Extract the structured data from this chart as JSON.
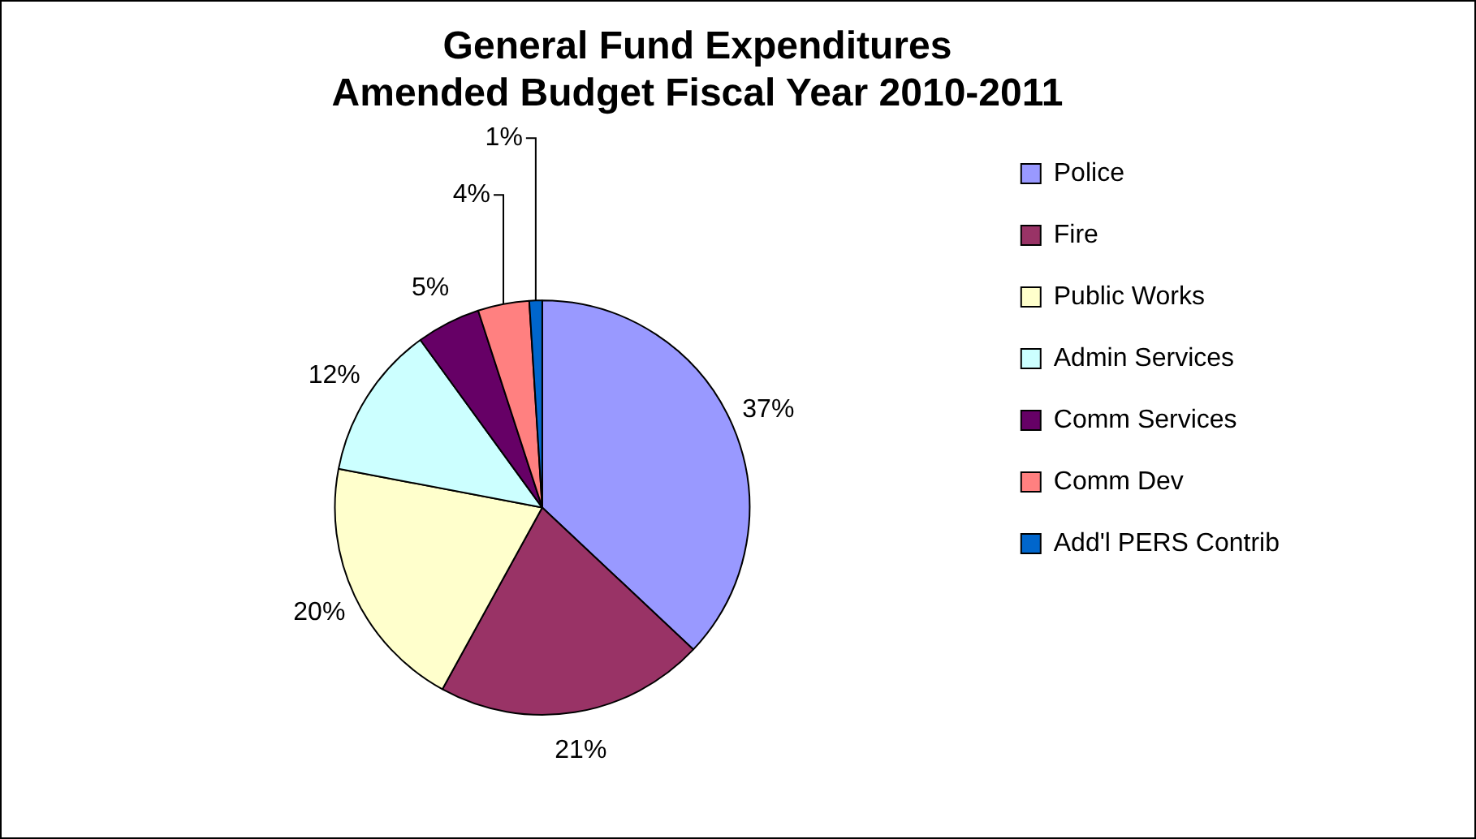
{
  "chart_data": {
    "type": "pie",
    "title": "General Fund Expenditures\nAmended Budget Fiscal Year 2010-2011",
    "categories": [
      "Police",
      "Fire",
      "Public Works",
      "Admin Services",
      "Comm Services",
      "Comm Dev",
      "Add'l PERS Contrib"
    ],
    "values": [
      37,
      21,
      20,
      12,
      5,
      4,
      1
    ],
    "colors": [
      "#9999ff",
      "#993366",
      "#ffffcc",
      "#ccffff",
      "#660066",
      "#ff8080",
      "#0066cc"
    ],
    "value_labels": [
      "37%",
      "21%",
      "20%",
      "12%",
      "5%",
      "4%",
      "1%"
    ],
    "legend": "right"
  }
}
